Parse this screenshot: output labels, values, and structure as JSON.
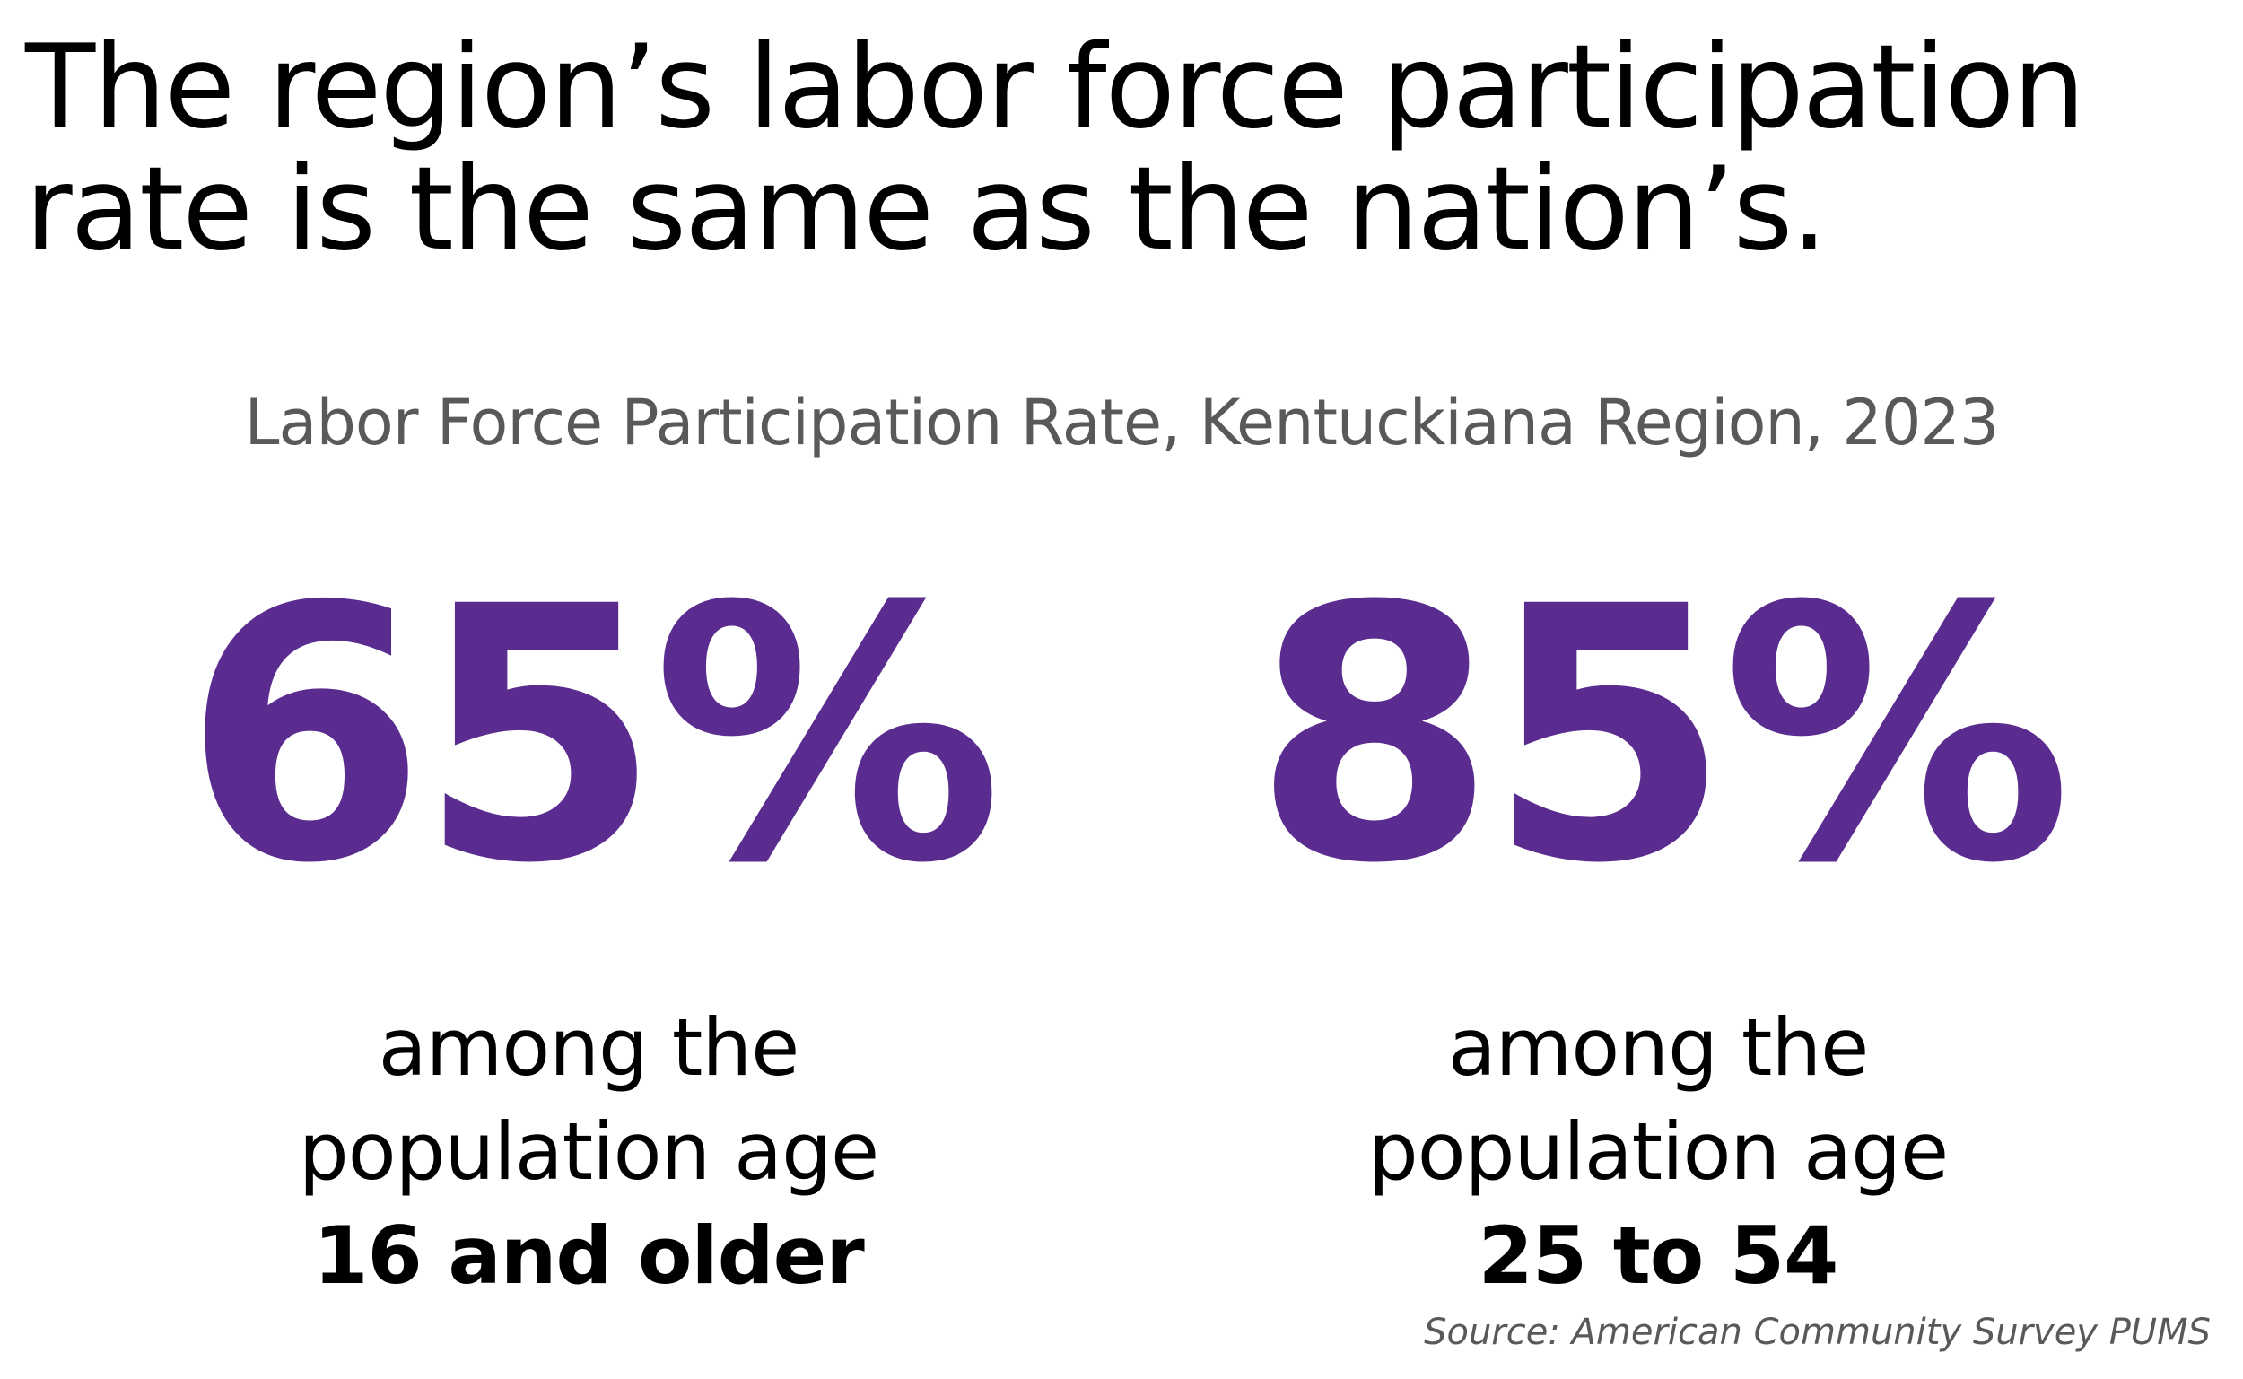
{
  "header": {
    "title_lines": [
      "The region’s labor force participation",
      "rate is the same as the nation’s."
    ],
    "subtitle": "Labor Force Participation Rate, Kentuckiana Region, 2023"
  },
  "stats": [
    {
      "value": "65%",
      "lines": [
        "among the",
        "population age"
      ],
      "emphasis": "16 and older"
    },
    {
      "value": "85%",
      "lines": [
        "among the",
        "population age"
      ],
      "emphasis": "25 to 54"
    }
  ],
  "footer": {
    "source": "Source: American Community Survey PUMS"
  }
}
